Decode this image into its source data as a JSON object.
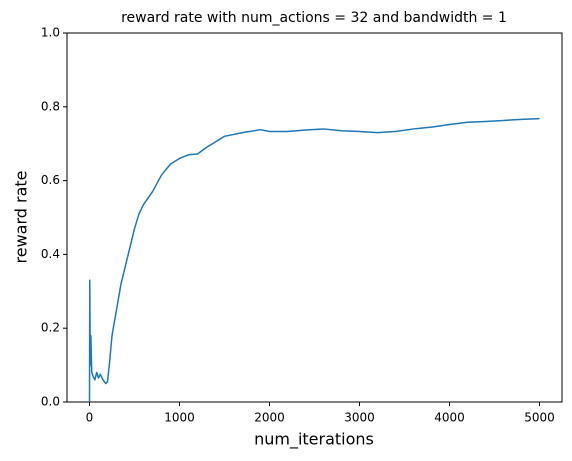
{
  "chart_data": {
    "type": "line",
    "title": "reward rate with num_actions = 32 and bandwidth = 1",
    "x_label": "num_iterations",
    "y_label": "reward rate",
    "x": [
      0,
      3,
      8,
      15,
      25,
      40,
      60,
      80,
      100,
      120,
      150,
      180,
      200,
      220,
      250,
      300,
      350,
      400,
      450,
      500,
      550,
      600,
      700,
      800,
      900,
      1000,
      1100,
      1200,
      1300,
      1400,
      1500,
      1700,
      1900,
      2000,
      2200,
      2400,
      2600,
      2800,
      3000,
      3200,
      3400,
      3600,
      3800,
      4000,
      4200,
      4400,
      4600,
      4800,
      5000
    ],
    "series": [
      {
        "name": "reward rate",
        "color": "#1f77b4",
        "values": [
          0.0,
          0.33,
          0.1,
          0.18,
          0.08,
          0.07,
          0.06,
          0.08,
          0.065,
          0.075,
          0.06,
          0.05,
          0.055,
          0.1,
          0.18,
          0.25,
          0.32,
          0.37,
          0.42,
          0.47,
          0.51,
          0.535,
          0.57,
          0.615,
          0.645,
          0.66,
          0.67,
          0.672,
          0.69,
          0.705,
          0.72,
          0.73,
          0.738,
          0.733,
          0.733,
          0.737,
          0.74,
          0.735,
          0.733,
          0.73,
          0.733,
          0.74,
          0.745,
          0.752,
          0.758,
          0.76,
          0.763,
          0.766,
          0.768
        ]
      }
    ],
    "xlim": [
      -250,
      5250
    ],
    "xticks": [
      0,
      1000,
      2000,
      3000,
      4000,
      5000
    ],
    "ylim": [
      0,
      1
    ],
    "yticks": [
      {
        "value": 0,
        "label": "0.0"
      },
      0.2,
      0.4,
      0.6,
      0.8,
      {
        "value": 1,
        "label": "1.0"
      }
    ]
  }
}
